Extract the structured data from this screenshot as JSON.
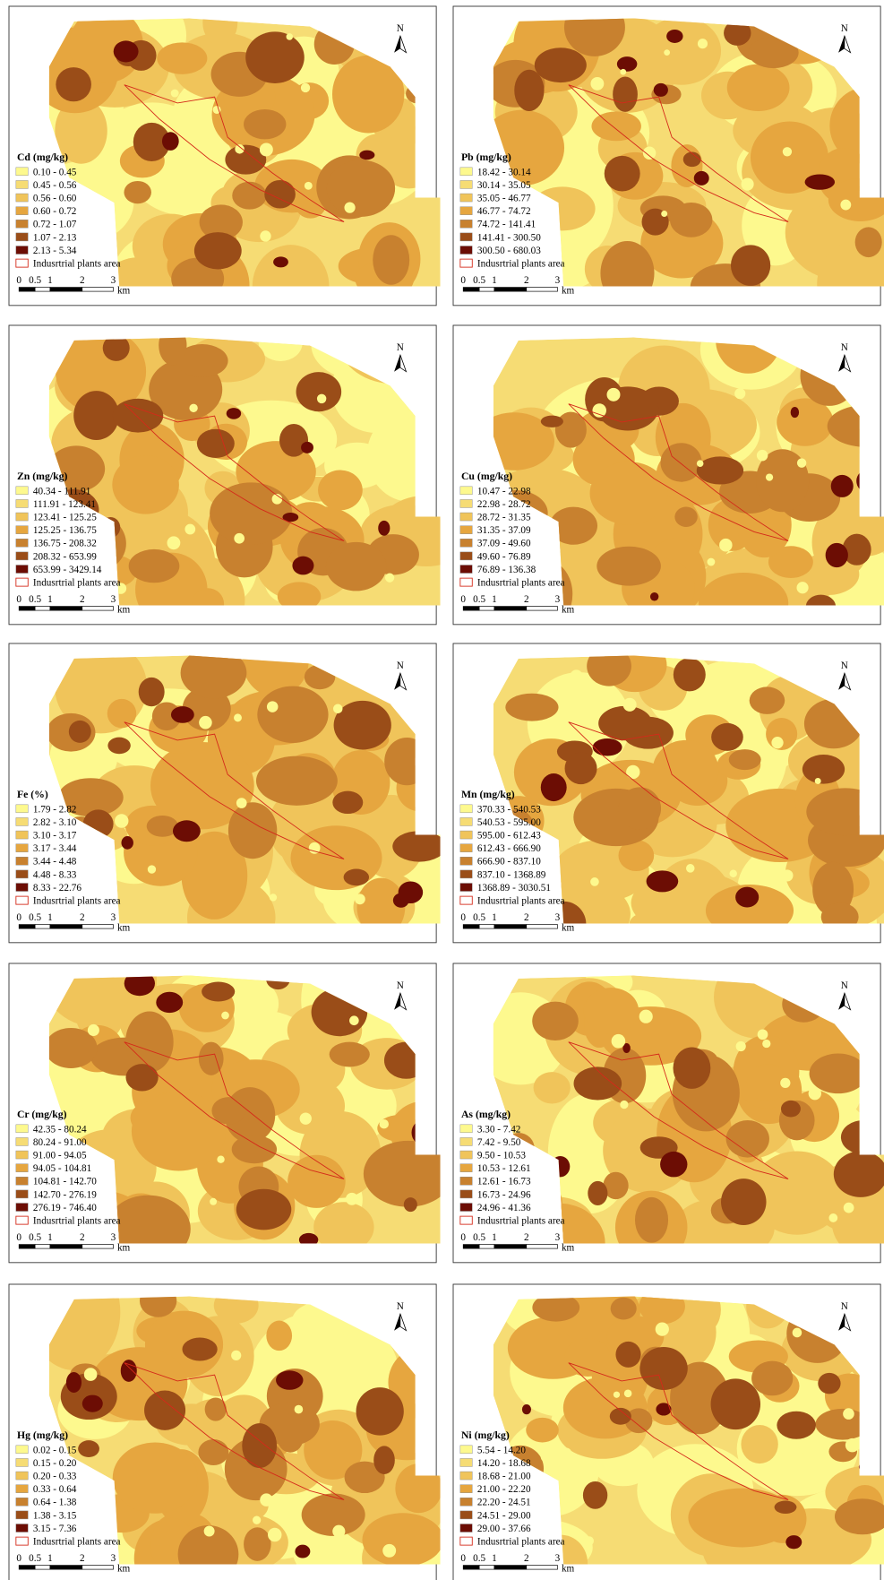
{
  "panels": [
    {
      "title": "Cd (mg/kg)",
      "classes": [
        "0.10 - 0.45",
        "0.45 - 0.56",
        "0.56 - 0.60",
        "0.60 - 0.72",
        "0.72 - 1.07",
        "1.07 - 2.13",
        "2.13 - 5.34"
      ]
    },
    {
      "title": "Pb (mg/kg)",
      "classes": [
        "18.42 - 30.14",
        "30.14 - 35.05",
        "35.05 - 46.77",
        "46.77 - 74.72",
        "74.72 - 141.41",
        "141.41 - 300.50",
        "300.50 - 680.03"
      ]
    },
    {
      "title": "Zn (mg/kg)",
      "classes": [
        "40.34 - 111.91",
        "111.91 - 123.41",
        "123.41 - 125.25",
        "125.25 - 136.75",
        "136.75 - 208.32",
        "208.32 - 653.99",
        "653.99 - 3429.14"
      ]
    },
    {
      "title": "Cu (mg/kg)",
      "classes": [
        "10.47 - 22.98",
        "22.98 - 28.72",
        "28.72 - 31.35",
        "31.35 - 37.09",
        "37.09 - 49.60",
        "49.60 - 76.89",
        "76.89 - 136.38"
      ]
    },
    {
      "title": "Fe (%)",
      "classes": [
        "1.79 - 2.82",
        "2.82 - 3.10",
        "3.10 - 3.17",
        "3.17 - 3.44",
        "3.44 - 4.48",
        "4.48 - 8.33",
        "8.33 - 22.76"
      ]
    },
    {
      "title": "Mn (mg/kg)",
      "classes": [
        "370.33 - 540.53",
        "540.53 - 595.00",
        "595.00 - 612.43",
        "612.43 - 666.90",
        "666.90 - 837.10",
        "837.10 - 1368.89",
        "1368.89 - 3030.51"
      ]
    },
    {
      "title": "Cr (mg/kg)",
      "classes": [
        "42.35 - 80.24",
        "80.24 - 91.00",
        "91.00 - 94.05",
        "94.05 - 104.81",
        "104.81 - 142.70",
        "142.70 - 276.19",
        "276.19 - 746.40"
      ]
    },
    {
      "title": "As (mg/kg)",
      "classes": [
        "3.30 - 7.42",
        "7.42 - 9.50",
        "9.50 - 10.53",
        "10.53 - 12.61",
        "12.61 - 16.73",
        "16.73 - 24.96",
        "24.96 - 41.36"
      ]
    },
    {
      "title": "Hg (mg/kg)",
      "classes": [
        "0.02 - 0.15",
        "0.15 - 0.20",
        "0.20 - 0.33",
        "0.33 - 0.64",
        "0.64 - 1.38",
        "1.38 - 3.15",
        "3.15 - 7.36"
      ]
    },
    {
      "title": "Ni (mg/kg)",
      "classes": [
        "5.54 - 14.20",
        "14.20 - 18.68",
        "18.68 - 21.00",
        "21.00 - 22.20",
        "22.20 - 24.51",
        "24.51 - 29.00",
        "29.00 - 37.66"
      ]
    }
  ],
  "legend_colors": [
    "#fdf98e",
    "#f6dc74",
    "#f0c45a",
    "#e6a63f",
    "#c8812f",
    "#9a4d18",
    "#6c0d04"
  ],
  "plants_label": "Indusrtrial plants area",
  "north": "N",
  "scale_labels": [
    "0",
    "0.5",
    "1",
    "2",
    "3"
  ],
  "scale_unit": "km"
}
